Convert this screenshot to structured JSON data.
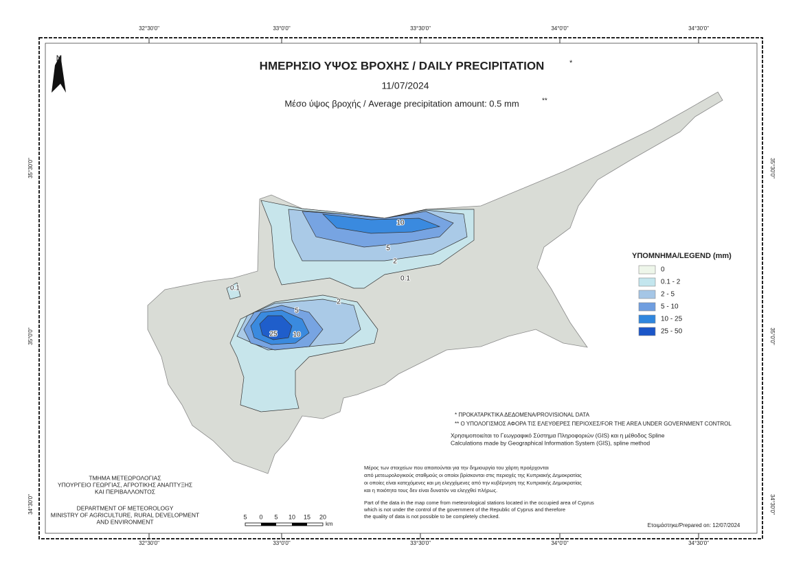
{
  "frame": {
    "x_ticks": [
      "32°30'0\"",
      "33°0'0\"",
      "33°30'0\"",
      "34°0'0\"",
      "34°30'0\""
    ],
    "y_ticks": [
      "35°30'0\"",
      "35°0'0\"",
      "34°30'0\""
    ]
  },
  "north": "N",
  "title": "ΗΜΕΡΗΣΙΟ ΥΨΟΣ ΒΡΟΧΗΣ / DAILY PRECIPITATION",
  "title_mark": "*",
  "date": "11/07/2024",
  "subtitle": "Μέσο ύψος βροχής / Average precipitation amount: 0.5 mm",
  "subtitle_mark": "**",
  "legend": {
    "title": "ΥΠΟΜΝΗΜΑ/LEGEND (mm)",
    "items": [
      {
        "label": "0",
        "color": "#eef6ea"
      },
      {
        "label": "0.1 - 2",
        "color": "#c3e6ee"
      },
      {
        "label": "2 - 5",
        "color": "#a5c6e6"
      },
      {
        "label": "5 - 10",
        "color": "#6f9ee0"
      },
      {
        "label": "10 - 25",
        "color": "#2f86de"
      },
      {
        "label": "25 - 50",
        "color": "#1b56c8"
      }
    ]
  },
  "contour_labels": [
    "10",
    "5",
    "2",
    "0.1",
    "2",
    "5",
    "10",
    "25",
    "0.1"
  ],
  "notes": [
    "* ΠΡΟΚΑΤΑΡΚΤΙΚΑ ΔΕΔΟΜΕΝΑ/PROVISIONAL DATA",
    "** Ο ΥΠΟΛΟΓΙΣΜΟΣ ΑΦΟΡΑ ΤΙΣ ΕΛΕΥΘΕΡΕΣ ΠΕΡΙΟΧΕΣ/FOR THE AREA UNDER GOVERNMENT CONTROL"
  ],
  "method": [
    "Χρησιμοποιείται το Γεωγραφικό Σύστημα Πληροφοριών (GIS) και η μέθοδος Spline",
    "Calculations made by Geographical Information System (GIS), spline method"
  ],
  "disclaimer_gr": [
    "Μέρος των στοιχείων που απαιτούνται για την δημιουργία του χάρτη προέρχονται",
    "από μετεωρολογικούς σταθμούς οι οποίοι βρίσκονται στις περιοχές της Κυπριακής Δημοκρατίας",
    "οι οποίες είναι κατεχόμενες και μη ελεγχόμενες από την κυβέρνηση της Κυπριακής Δημοκρατίας",
    "και η ποιότητα τους δεν είναι δυνατόν να ελεγχθεί πλήρως."
  ],
  "disclaimer_en": [
    "Part of the data in the map come from meteorological stations located in the occupied area of Cyprus",
    "which is not under the control of the government of the Republic of Cyprus and therefore",
    "the quality of data is not possible to be completely checked."
  ],
  "department_gr": [
    "ΤΜΗΜΑ ΜΕΤΕΩΡΟΛΟΓΙΑΣ",
    "ΥΠΟΥΡΓΕΙΟ ΓΕΩΡΓΙΑΣ, ΑΓΡΟΤΙΚΗΣ ΑΝΑΠΤΥΞΗΣ",
    "ΚΑΙ ΠΕΡΙΒΑΛΛΟΝΤΟΣ"
  ],
  "department_en": [
    "DEPARTMENT OF METEOROLOGY",
    "MINISTRY OF AGRICULTURE, RURAL DEVELOPMENT",
    "AND ENVIRONMENT"
  ],
  "scale": {
    "labels": [
      "5",
      "0",
      "5",
      "10",
      "15",
      "20"
    ],
    "unit": "km"
  },
  "prepared": "Ετοιμάστηκε/Prepared on: 12/07/2024"
}
